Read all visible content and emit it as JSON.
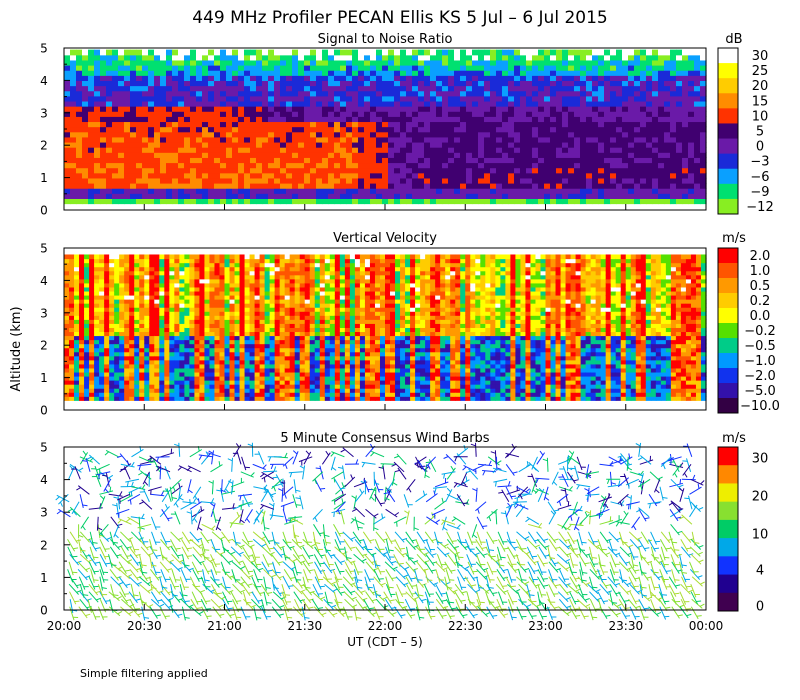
{
  "figure": {
    "title": "449 MHz Profiler PECAN Ellis KS  5 Jul –  6 Jul 2015",
    "ylabel": "Altitude (km)",
    "xlabel": "UT  (CDT – 5)",
    "footnote": "Simple filtering applied",
    "time_ticks": [
      "20:00",
      "20:30",
      "21:00",
      "21:30",
      "22:00",
      "22:30",
      "23:00",
      "23:30",
      "00:00"
    ],
    "altitude_ticks": [
      "0",
      "1",
      "2",
      "3",
      "4",
      "5"
    ]
  },
  "chart_data": [
    {
      "type": "heatmap",
      "title": "Signal to Noise Ratio",
      "unit": "dB",
      "xlim": [
        "20:00",
        "00:00"
      ],
      "ylim": [
        0,
        5
      ],
      "colorbar": {
        "labels": [
          "30",
          "25",
          "20",
          "15",
          "10",
          "5",
          "0",
          "−3",
          "−6",
          "−9",
          "−12"
        ],
        "colors": [
          "#ffffff",
          "#ffff00",
          "#ffcc00",
          "#ff8c00",
          "#ff3300",
          "#400070",
          "#6a1aa8",
          "#1a2ad8",
          "#0aa0ff",
          "#00e070",
          "#88ee22"
        ]
      },
      "profile": [
        {
          "alt": 0.25,
          "value": -12
        },
        {
          "alt": 0.5,
          "value": 0
        },
        {
          "alt": 1.0,
          "value": 8
        },
        {
          "alt": 1.5,
          "value": 9
        },
        {
          "alt": 2.0,
          "value": 6
        },
        {
          "alt": 2.5,
          "value": 2
        },
        {
          "alt": 3.0,
          "value": -2
        },
        {
          "alt": 3.5,
          "value": -3
        },
        {
          "alt": 4.0,
          "value": -6
        },
        {
          "alt": 4.5,
          "value": -9
        },
        {
          "alt": 5.0,
          "value": -12
        }
      ]
    },
    {
      "type": "heatmap",
      "title": "Vertical Velocity",
      "unit": "m/s",
      "xlim": [
        "20:00",
        "00:00"
      ],
      "ylim": [
        0,
        5
      ],
      "colorbar": {
        "labels": [
          "2.0",
          "1.0",
          "0.5",
          "0.2",
          "0.0",
          "−0.2",
          "−0.5",
          "−1.0",
          "−2.0",
          "−5.0",
          "−10.0"
        ],
        "colors": [
          "#ff0000",
          "#ff5500",
          "#ff9900",
          "#ffcc00",
          "#ffff00",
          "#55e000",
          "#00cc88",
          "#0099ff",
          "#1133ee",
          "#3311aa",
          "#330044"
        ]
      },
      "data_range_km": [
        0.3,
        4.8
      ]
    },
    {
      "type": "scatter",
      "title": "5 Minute Consensus Wind Barbs",
      "unit": "m/s",
      "xlim": [
        "20:00",
        "00:00"
      ],
      "ylim": [
        0,
        5
      ],
      "colorbar": {
        "labels": [
          "30",
          "20",
          "10",
          "4",
          "0"
        ],
        "colors": [
          "#ff0000",
          "#ff8800",
          "#eeee00",
          "#88e030",
          "#00cc66",
          "#00a8e8",
          "#1133ff",
          "#200090",
          "#400050"
        ]
      },
      "profile": [
        {
          "alt": 0.5,
          "speed": 14
        },
        {
          "alt": 1.5,
          "speed": 12
        },
        {
          "alt": 2.5,
          "speed": 8
        },
        {
          "alt": 3.5,
          "speed": 4
        },
        {
          "alt": 4.5,
          "speed": 6
        }
      ]
    }
  ]
}
